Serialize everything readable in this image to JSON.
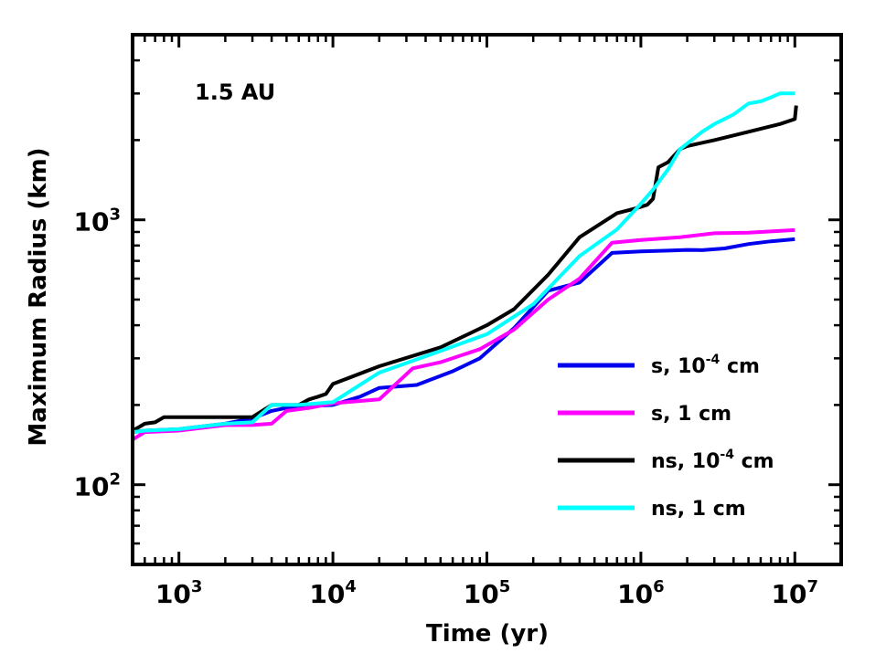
{
  "chart_data": {
    "type": "line",
    "title": "",
    "annotation": "1.5 AU",
    "xlabel": "Time (yr)",
    "ylabel": "Maximum Radius (km)",
    "xscale": "log",
    "yscale": "log",
    "xlim": [
      500,
      20000000
    ],
    "ylim": [
      50,
      5000
    ],
    "xticks": [
      {
        "value": 1000,
        "base": "10",
        "exp": "3"
      },
      {
        "value": 10000,
        "base": "10",
        "exp": "4"
      },
      {
        "value": 100000,
        "base": "10",
        "exp": "5"
      },
      {
        "value": 1000000,
        "base": "10",
        "exp": "6"
      },
      {
        "value": 10000000,
        "base": "10",
        "exp": "7"
      }
    ],
    "yticks": [
      {
        "value": 100,
        "base": "10",
        "exp": "2"
      },
      {
        "value": 1000,
        "base": "10",
        "exp": "3"
      }
    ],
    "grid": false,
    "legend_position": "lower-right",
    "series": [
      {
        "name": "s, 10^-4 cm",
        "label_main": "s, 10",
        "label_exp": "-4",
        "label_tail": " cm",
        "color": "#0000ee",
        "x": [
          500,
          600,
          1000,
          2000,
          3000,
          4000,
          5000,
          7000,
          10000,
          15000,
          20000,
          35000,
          60000,
          90000,
          150000,
          250000,
          400000,
          650000,
          1000000,
          1500000,
          2000000,
          2500000,
          3500000,
          5000000,
          7000000,
          10000000
        ],
        "y": [
          158,
          160,
          162,
          170,
          178,
          190,
          195,
          198,
          200,
          215,
          232,
          238,
          268,
          300,
          390,
          540,
          580,
          750,
          760,
          765,
          770,
          768,
          780,
          810,
          830,
          845
        ]
      },
      {
        "name": "s, 1 cm",
        "label_main": "s, 1 cm",
        "label_exp": "",
        "label_tail": "",
        "color": "#ff00ff",
        "x": [
          500,
          600,
          1000,
          2000,
          3000,
          4000,
          5000,
          7000,
          10000,
          20000,
          33000,
          50000,
          90000,
          150000,
          250000,
          400000,
          650000,
          1000000,
          1800000,
          3000000,
          5000000,
          10000000
        ],
        "y": [
          148,
          158,
          160,
          168,
          168,
          170,
          190,
          195,
          203,
          210,
          275,
          290,
          325,
          385,
          500,
          600,
          820,
          840,
          860,
          890,
          895,
          915
        ]
      },
      {
        "name": "ns, 10^-4 cm",
        "label_main": "ns, 10",
        "label_exp": "-4",
        "label_tail": " cm",
        "color": "#000000",
        "x": [
          500,
          550,
          600,
          700,
          800,
          1000,
          1500,
          2000,
          3000,
          4000,
          5000,
          6000,
          7000,
          8000,
          9000,
          10000,
          20000,
          50000,
          100000,
          150000,
          250000,
          400000,
          600000,
          700000,
          900000,
          1000000,
          1100000,
          1200000,
          1300000,
          1500000,
          1800000,
          2000000,
          3000000,
          5000000,
          8000000,
          10000000,
          10200000
        ],
        "y": [
          160,
          165,
          170,
          172,
          180,
          180,
          180,
          180,
          180,
          200,
          200,
          200,
          210,
          215,
          220,
          240,
          280,
          330,
          400,
          460,
          620,
          860,
          1000,
          1060,
          1100,
          1120,
          1140,
          1200,
          1580,
          1650,
          1850,
          1900,
          2000,
          2150,
          2300,
          2400,
          2700
        ]
      },
      {
        "name": "ns, 1 cm",
        "label_main": "ns, 1 cm",
        "label_exp": "",
        "label_tail": "",
        "color": "#00ffff",
        "x": [
          500,
          600,
          1000,
          2000,
          3000,
          4000,
          6000,
          10000,
          20000,
          50000,
          100000,
          200000,
          400000,
          700000,
          1000000,
          1200000,
          1500000,
          1800000,
          2500000,
          3000000,
          4000000,
          5000000,
          6000000,
          7000000,
          8000000,
          10000000
        ],
        "y": [
          158,
          160,
          162,
          170,
          172,
          200,
          200,
          205,
          265,
          320,
          370,
          480,
          730,
          920,
          1150,
          1300,
          1550,
          1850,
          2150,
          2300,
          2500,
          2750,
          2800,
          2900,
          3000,
          3000
        ]
      }
    ]
  }
}
